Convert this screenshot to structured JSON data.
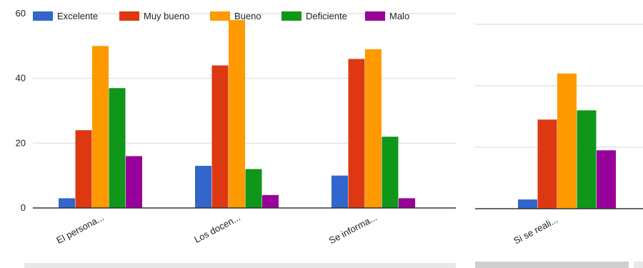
{
  "chart_data": [
    {
      "type": "bar",
      "categories": [
        "El persona...",
        "Los docen...",
        "Se informa..."
      ],
      "series": [
        {
          "name": "Excelente",
          "color": "#3366cc",
          "values": [
            3,
            13,
            10
          ]
        },
        {
          "name": "Muy bueno",
          "color": "#dc3912",
          "values": [
            24,
            44,
            46
          ]
        },
        {
          "name": "Bueno",
          "color": "#ff9900",
          "values": [
            50,
            58,
            49
          ]
        },
        {
          "name": "Deficiente",
          "color": "#109618",
          "values": [
            37,
            12,
            22
          ]
        },
        {
          "name": "Malo",
          "color": "#990099",
          "values": [
            16,
            4,
            3
          ]
        }
      ],
      "yticks": [
        0,
        20,
        40,
        60
      ],
      "ylim": [
        0,
        60
      ],
      "grid": true,
      "legend": "top"
    },
    {
      "type": "bar",
      "categories": [
        "Si se reali..."
      ],
      "series": [
        {
          "name": "Excelente",
          "color": "#3366cc",
          "values": [
            3
          ]
        },
        {
          "name": "Muy bueno",
          "color": "#dc3912",
          "values": [
            29
          ]
        },
        {
          "name": "Bueno",
          "color": "#ff9900",
          "values": [
            44
          ]
        },
        {
          "name": "Deficiente",
          "color": "#109618",
          "values": [
            32
          ]
        },
        {
          "name": "Malo",
          "color": "#990099",
          "values": [
            19
          ]
        }
      ],
      "ylim": [
        0,
        60
      ],
      "grid": true
    }
  ]
}
